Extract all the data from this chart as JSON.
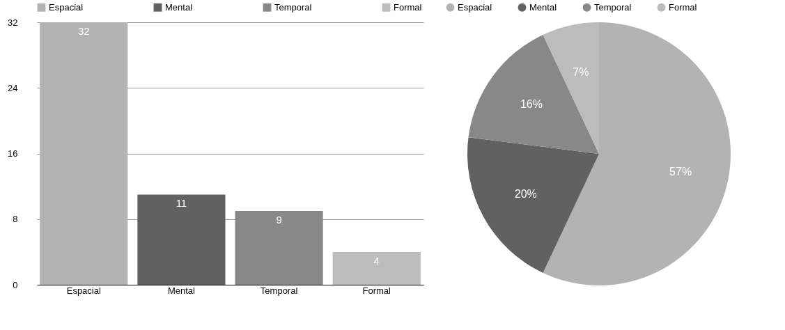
{
  "chart_data": [
    {
      "type": "bar",
      "categories": [
        "Espacial",
        "Mental",
        "Temporal",
        "Formal"
      ],
      "series": [
        {
          "name": "Espacial",
          "color": "#b3b3b3",
          "values": [
            32,
            null,
            null,
            null
          ]
        },
        {
          "name": "Mental",
          "color": "#616161",
          "values": [
            null,
            11,
            null,
            null
          ]
        },
        {
          "name": "Temporal",
          "color": "#888888",
          "values": [
            null,
            null,
            9,
            null
          ]
        },
        {
          "name": "Formal",
          "color": "#bcbcbc",
          "values": [
            null,
            null,
            null,
            4
          ]
        }
      ],
      "ylim": [
        0,
        32
      ],
      "yticks": [
        0,
        8,
        16,
        24,
        32
      ],
      "grid": "y",
      "legend": "top",
      "data_labels": true
    },
    {
      "type": "pie",
      "categories": [
        "Espacial",
        "Mental",
        "Temporal",
        "Formal"
      ],
      "values": [
        57,
        20,
        16,
        7
      ],
      "value_labels": [
        "57%",
        "20%",
        "16%",
        "7%"
      ],
      "colors": [
        "#b3b3b3",
        "#616161",
        "#888888",
        "#bcbcbc"
      ],
      "legend": "top"
    }
  ]
}
